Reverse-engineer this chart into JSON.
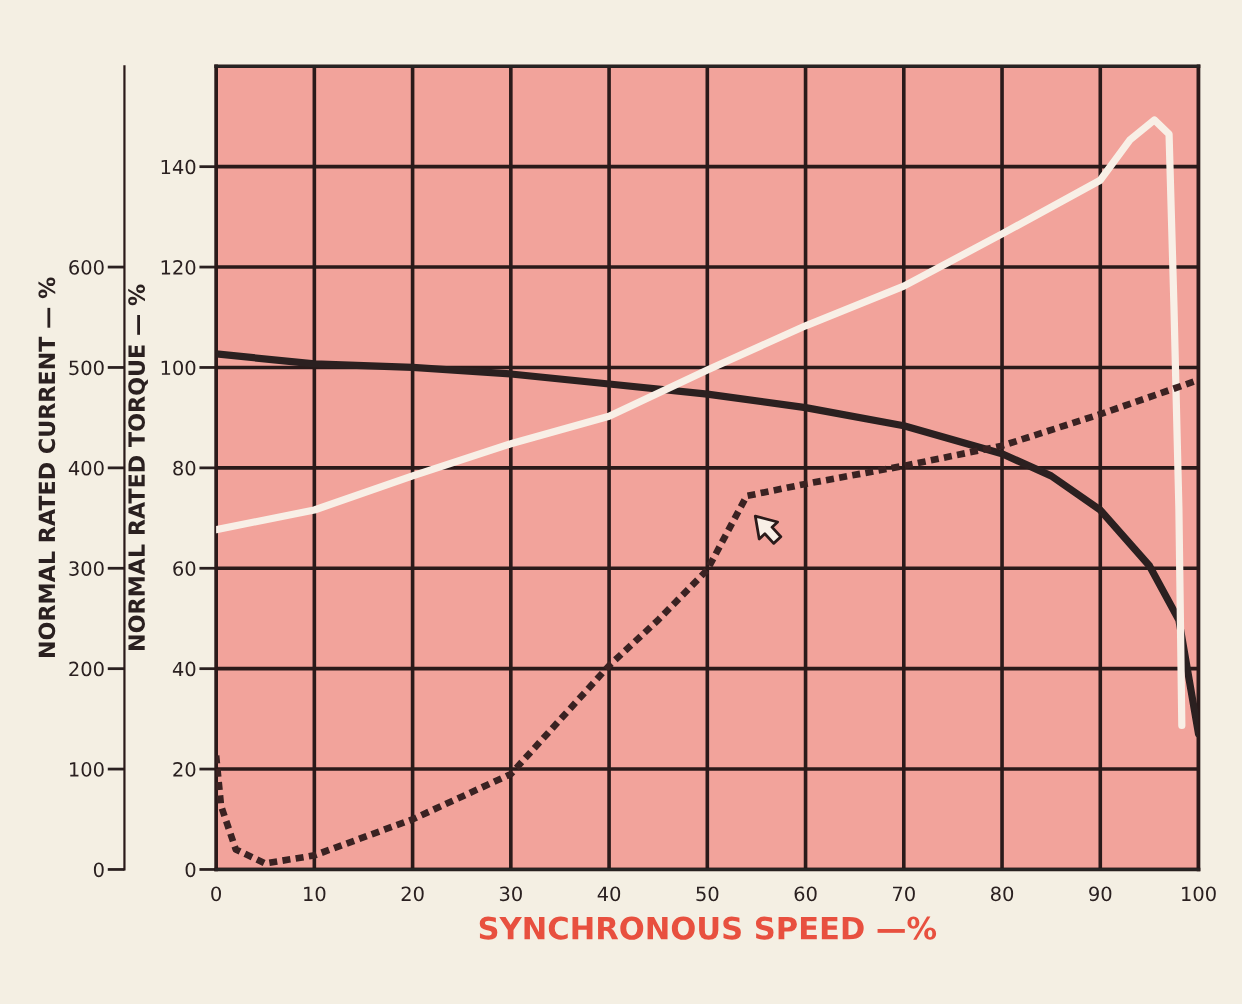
{
  "chart_data": {
    "type": "line",
    "xlabel": "SYNCHRONOUS SPEED —%",
    "ylabel": "NORMAL RATED TORQUE — %",
    "y2label": "NORMAL RATED CURRENT — %",
    "series": [
      {
        "color": "#2b2020",
        "line_style": "solid",
        "x": [
          0,
          10,
          20,
          30,
          40,
          50,
          60,
          70,
          80,
          85,
          90,
          95,
          98,
          100
        ],
        "values": [
          102.7,
          100.7,
          100,
          98.7,
          96.7,
          94.7,
          92,
          88.4,
          82.8,
          78.4,
          71.6,
          60.5,
          49.7,
          27
        ]
      },
      {
        "color": "#f8efe6",
        "line_style": "solid",
        "x": [
          0,
          10,
          20,
          30,
          40,
          50,
          60,
          70,
          80,
          90,
          93,
          95.5,
          97,
          97.5,
          98,
          98.3
        ],
        "values": [
          67.7,
          71.6,
          78.4,
          84.8,
          90.3,
          99.5,
          108.3,
          116.2,
          126.6,
          137.3,
          145.3,
          149.3,
          146.5,
          112,
          72,
          28.7
        ]
      },
      {
        "color": "#3a2222",
        "line_style": "dotted",
        "x": [
          0,
          0.5,
          2,
          5,
          10,
          20,
          30,
          40,
          45,
          50,
          54,
          55,
          60,
          70,
          80,
          90,
          100
        ],
        "values": [
          22.7,
          12.7,
          4,
          1.2,
          2.8,
          10,
          19,
          40.6,
          49.7,
          59.7,
          74.4,
          74.8,
          76.8,
          80.4,
          84.4,
          90.7,
          97.5
        ]
      }
    ],
    "xlim": [
      0,
      100
    ],
    "xticks": [
      0,
      10,
      20,
      30,
      40,
      50,
      60,
      70,
      80,
      90,
      100
    ],
    "ylim": [
      0,
      160
    ],
    "yticks": [
      0,
      20,
      40,
      60,
      80,
      100,
      120,
      140
    ],
    "y2lim": [
      0,
      800
    ],
    "y2ticks": [
      0,
      100,
      200,
      300,
      400,
      500,
      600
    ],
    "grid": true,
    "marker": "none"
  }
}
